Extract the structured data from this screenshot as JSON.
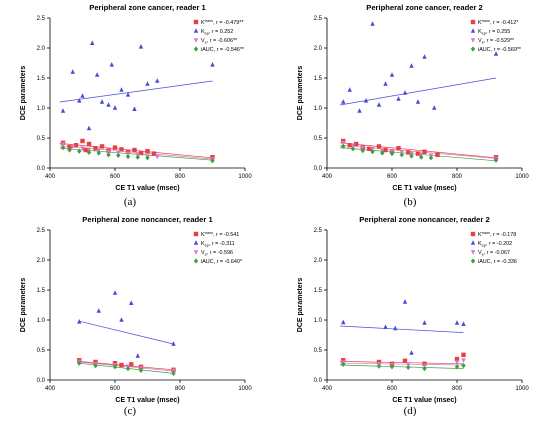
{
  "panel_labels": [
    "(a)",
    "(b)",
    "(c)",
    "(d)"
  ],
  "chart_data": [
    {
      "type": "scatter",
      "title": "Peripheral zone cancer, reader 1",
      "xlabel": "CE T1 value  (msec)",
      "ylabel": "DCE parameters",
      "xlim": [
        400,
        1000
      ],
      "ylim": [
        0.0,
        2.5
      ],
      "xticks": [
        "400",
        "600",
        "800",
        "1000"
      ],
      "yticks": [
        "0.0",
        "0.5",
        "1.0",
        "1.5",
        "2.0",
        "2.5"
      ],
      "legend_position": "top-right",
      "series": [
        {
          "name": "Ktrans",
          "legend_base": "K",
          "legend_sup": "trans",
          "legend_stat": ", r = -0.479**",
          "color": "#e8413c",
          "marker": "square",
          "points": [
            [
              440,
              0.42
            ],
            [
              460,
              0.35
            ],
            [
              480,
              0.38
            ],
            [
              500,
              0.45
            ],
            [
              510,
              0.3
            ],
            [
              520,
              0.4
            ],
            [
              540,
              0.33
            ],
            [
              560,
              0.36
            ],
            [
              580,
              0.29
            ],
            [
              600,
              0.34
            ],
            [
              620,
              0.31
            ],
            [
              640,
              0.27
            ],
            [
              660,
              0.3
            ],
            [
              680,
              0.25
            ],
            [
              700,
              0.28
            ],
            [
              720,
              0.24
            ],
            [
              900,
              0.18
            ]
          ],
          "fit": [
            [
              430,
              0.41
            ],
            [
              900,
              0.17
            ]
          ]
        },
        {
          "name": "Kep",
          "legend_base": "K",
          "legend_sub": "ep",
          "legend_stat": ", r = 0.252",
          "color": "#4a4adc",
          "marker": "triangle",
          "points": [
            [
              440,
              0.95
            ],
            [
              470,
              1.6
            ],
            [
              490,
              1.12
            ],
            [
              500,
              1.2
            ],
            [
              520,
              0.66
            ],
            [
              530,
              2.08
            ],
            [
              545,
              1.55
            ],
            [
              560,
              1.1
            ],
            [
              580,
              1.05
            ],
            [
              590,
              1.72
            ],
            [
              600,
              1.0
            ],
            [
              620,
              1.3
            ],
            [
              640,
              1.22
            ],
            [
              660,
              0.98
            ],
            [
              680,
              2.02
            ],
            [
              700,
              1.4
            ],
            [
              730,
              1.45
            ],
            [
              900,
              1.72
            ]
          ],
          "fit": [
            [
              430,
              1.1
            ],
            [
              900,
              1.45
            ]
          ]
        },
        {
          "name": "Ve",
          "legend_base": "V",
          "legend_sub": "e",
          "legend_stat": ", r = -0.606**",
          "color": "#d676d6",
          "marker": "triangle-down",
          "points": [
            [
              440,
              0.4
            ],
            [
              470,
              0.36
            ],
            [
              500,
              0.33
            ],
            [
              520,
              0.31
            ],
            [
              550,
              0.3
            ],
            [
              580,
              0.27
            ],
            [
              610,
              0.26
            ],
            [
              640,
              0.24
            ],
            [
              670,
              0.22
            ],
            [
              700,
              0.2
            ],
            [
              730,
              0.19
            ],
            [
              900,
              0.15
            ]
          ],
          "fit": [
            [
              430,
              0.37
            ],
            [
              900,
              0.15
            ]
          ]
        },
        {
          "name": "iAUC",
          "legend_base": "iAUC",
          "legend_stat": ", r = -0.546**",
          "color": "#3ca03c",
          "marker": "diamond",
          "points": [
            [
              440,
              0.34
            ],
            [
              460,
              0.3
            ],
            [
              490,
              0.28
            ],
            [
              520,
              0.26
            ],
            [
              550,
              0.25
            ],
            [
              580,
              0.22
            ],
            [
              610,
              0.21
            ],
            [
              640,
              0.19
            ],
            [
              670,
              0.18
            ],
            [
              700,
              0.17
            ],
            [
              900,
              0.12
            ]
          ],
          "fit": [
            [
              430,
              0.33
            ],
            [
              900,
              0.13
            ]
          ]
        }
      ]
    },
    {
      "type": "scatter",
      "title": "Peripheral zone cancer, reader 2",
      "xlabel": "CE T1 value  (msec)",
      "ylabel": "DCE parameters",
      "xlim": [
        400,
        1000
      ],
      "ylim": [
        0.0,
        2.5
      ],
      "xticks": [
        "400",
        "600",
        "800",
        "1000"
      ],
      "yticks": [
        "0.0",
        "0.5",
        "1.0",
        "1.5",
        "2.0",
        "2.5"
      ],
      "legend_position": "top-right",
      "series": [
        {
          "name": "Ktrans",
          "legend_base": "K",
          "legend_sup": "trans",
          "legend_stat": ", r = -0.412*",
          "color": "#e8413c",
          "marker": "square",
          "points": [
            [
              450,
              0.45
            ],
            [
              470,
              0.38
            ],
            [
              490,
              0.4
            ],
            [
              510,
              0.35
            ],
            [
              530,
              0.32
            ],
            [
              560,
              0.36
            ],
            [
              580,
              0.3
            ],
            [
              600,
              0.28
            ],
            [
              620,
              0.33
            ],
            [
              650,
              0.26
            ],
            [
              680,
              0.24
            ],
            [
              700,
              0.27
            ],
            [
              740,
              0.22
            ],
            [
              920,
              0.18
            ]
          ],
          "fit": [
            [
              440,
              0.42
            ],
            [
              920,
              0.17
            ]
          ]
        },
        {
          "name": "Kep",
          "legend_base": "K",
          "legend_sub": "ep",
          "legend_stat": ", r = 0.255",
          "color": "#4a4adc",
          "marker": "triangle",
          "points": [
            [
              450,
              1.1
            ],
            [
              470,
              1.3
            ],
            [
              500,
              0.95
            ],
            [
              520,
              1.12
            ],
            [
              540,
              2.4
            ],
            [
              560,
              1.05
            ],
            [
              580,
              1.4
            ],
            [
              600,
              1.55
            ],
            [
              620,
              1.15
            ],
            [
              640,
              1.25
            ],
            [
              660,
              1.7
            ],
            [
              680,
              1.1
            ],
            [
              700,
              1.85
            ],
            [
              730,
              1.0
            ],
            [
              920,
              1.9
            ]
          ],
          "fit": [
            [
              440,
              1.05
            ],
            [
              920,
              1.5
            ]
          ]
        },
        {
          "name": "Ve",
          "legend_base": "V",
          "legend_sub": "e",
          "legend_stat": ", r = -0.529**",
          "color": "#d676d6",
          "marker": "triangle-down",
          "points": [
            [
              450,
              0.42
            ],
            [
              480,
              0.38
            ],
            [
              510,
              0.34
            ],
            [
              540,
              0.32
            ],
            [
              570,
              0.3
            ],
            [
              600,
              0.28
            ],
            [
              630,
              0.27
            ],
            [
              660,
              0.24
            ],
            [
              690,
              0.22
            ],
            [
              720,
              0.21
            ],
            [
              920,
              0.16
            ]
          ],
          "fit": [
            [
              440,
              0.38
            ],
            [
              920,
              0.16
            ]
          ]
        },
        {
          "name": "iAUC",
          "legend_base": "iAUC",
          "legend_stat": ", r = -0.569**",
          "color": "#3ca03c",
          "marker": "diamond",
          "points": [
            [
              450,
              0.36
            ],
            [
              480,
              0.32
            ],
            [
              510,
              0.29
            ],
            [
              540,
              0.27
            ],
            [
              570,
              0.25
            ],
            [
              600,
              0.24
            ],
            [
              630,
              0.22
            ],
            [
              660,
              0.2
            ],
            [
              690,
              0.18
            ],
            [
              720,
              0.17
            ],
            [
              920,
              0.13
            ]
          ],
          "fit": [
            [
              440,
              0.34
            ],
            [
              920,
              0.12
            ]
          ]
        }
      ]
    },
    {
      "type": "scatter",
      "title": "Peripheral zone noncancer, reader 1",
      "xlabel": "CE  T1 value  (msec)",
      "ylabel": "DCE parameters",
      "xlim": [
        400,
        1000
      ],
      "ylim": [
        0.0,
        2.5
      ],
      "xticks": [
        "400",
        "600",
        "800",
        "1000"
      ],
      "yticks": [
        "0.0",
        "0.5",
        "1.0",
        "1.5",
        "2.0",
        "2.5"
      ],
      "legend_position": "top-right",
      "series": [
        {
          "name": "Ktrans",
          "legend_base": "K",
          "legend_sup": "trans",
          "legend_stat": ", r = -0.541",
          "color": "#e8413c",
          "marker": "square",
          "points": [
            [
              490,
              0.33
            ],
            [
              540,
              0.3
            ],
            [
              600,
              0.28
            ],
            [
              620,
              0.25
            ],
            [
              650,
              0.26
            ],
            [
              680,
              0.22
            ],
            [
              780,
              0.17
            ]
          ],
          "fit": [
            [
              490,
              0.31
            ],
            [
              780,
              0.17
            ]
          ]
        },
        {
          "name": "Kep",
          "legend_base": "K",
          "legend_sub": "ep",
          "legend_stat": ", r = -0.311",
          "color": "#4a4adc",
          "marker": "triangle",
          "points": [
            [
              490,
              0.97
            ],
            [
              550,
              1.15
            ],
            [
              600,
              1.45
            ],
            [
              620,
              1.0
            ],
            [
              650,
              1.28
            ],
            [
              670,
              0.4
            ],
            [
              780,
              0.6
            ]
          ],
          "fit": [
            [
              490,
              0.98
            ],
            [
              780,
              0.6
            ]
          ]
        },
        {
          "name": "Ve",
          "legend_base": "V",
          "legend_sub": "e",
          "legend_stat": ", r = -0.596",
          "color": "#d676d6",
          "marker": "triangle-down",
          "points": [
            [
              490,
              0.31
            ],
            [
              540,
              0.27
            ],
            [
              600,
              0.25
            ],
            [
              640,
              0.23
            ],
            [
              680,
              0.2
            ],
            [
              780,
              0.16
            ]
          ],
          "fit": [
            [
              490,
              0.3
            ],
            [
              780,
              0.15
            ]
          ]
        },
        {
          "name": "iAUC",
          "legend_base": "iAUC",
          "legend_stat": ", r = -0.640*",
          "color": "#3ca03c",
          "marker": "diamond",
          "points": [
            [
              490,
              0.28
            ],
            [
              540,
              0.24
            ],
            [
              600,
              0.22
            ],
            [
              640,
              0.19
            ],
            [
              680,
              0.16
            ],
            [
              780,
              0.11
            ]
          ],
          "fit": [
            [
              490,
              0.28
            ],
            [
              780,
              0.11
            ]
          ]
        }
      ]
    },
    {
      "type": "scatter",
      "title": "Peripheral zone noncancer, reader 2",
      "xlabel": "CE  T1 value  (msec)",
      "ylabel": "DCE parameters",
      "xlim": [
        400,
        1000
      ],
      "ylim": [
        0.0,
        2.5
      ],
      "xticks": [
        "400",
        "600",
        "800",
        "1000"
      ],
      "yticks": [
        "0.0",
        "0.5",
        "1.0",
        "1.5",
        "2.0",
        "2.5"
      ],
      "legend_position": "top-right",
      "series": [
        {
          "name": "Ktrans",
          "legend_base": "K",
          "legend_sup": "trans",
          "legend_stat": ", r = -0.178",
          "color": "#e8413c",
          "marker": "square",
          "points": [
            [
              450,
              0.33
            ],
            [
              560,
              0.3
            ],
            [
              600,
              0.27
            ],
            [
              640,
              0.32
            ],
            [
              700,
              0.27
            ],
            [
              800,
              0.35
            ],
            [
              820,
              0.42
            ]
          ],
          "fit": [
            [
              440,
              0.31
            ],
            [
              820,
              0.27
            ]
          ]
        },
        {
          "name": "Kep",
          "legend_base": "K",
          "legend_sub": "ep",
          "legend_stat": ", r = -0.202",
          "color": "#4a4adc",
          "marker": "triangle",
          "points": [
            [
              450,
              0.96
            ],
            [
              580,
              0.88
            ],
            [
              610,
              0.86
            ],
            [
              640,
              1.3
            ],
            [
              660,
              0.45
            ],
            [
              700,
              0.95
            ],
            [
              800,
              0.95
            ],
            [
              820,
              0.93
            ]
          ],
          "fit": [
            [
              440,
              0.9
            ],
            [
              820,
              0.79
            ]
          ]
        },
        {
          "name": "Ve",
          "legend_base": "V",
          "legend_sub": "e",
          "legend_stat": ", r = -0.067",
          "color": "#d676d6",
          "marker": "triangle-down",
          "points": [
            [
              450,
              0.3
            ],
            [
              560,
              0.27
            ],
            [
              600,
              0.25
            ],
            [
              650,
              0.26
            ],
            [
              700,
              0.24
            ],
            [
              800,
              0.3
            ],
            [
              820,
              0.33
            ]
          ],
          "fit": [
            [
              440,
              0.28
            ],
            [
              820,
              0.25
            ]
          ]
        },
        {
          "name": "iAUC",
          "legend_base": "iAUC",
          "legend_stat": ", r = -0.336",
          "color": "#3ca03c",
          "marker": "diamond",
          "points": [
            [
              450,
              0.26
            ],
            [
              560,
              0.23
            ],
            [
              600,
              0.22
            ],
            [
              650,
              0.21
            ],
            [
              700,
              0.19
            ],
            [
              800,
              0.22
            ],
            [
              820,
              0.24
            ]
          ],
          "fit": [
            [
              440,
              0.25
            ],
            [
              820,
              0.19
            ]
          ]
        }
      ]
    }
  ]
}
